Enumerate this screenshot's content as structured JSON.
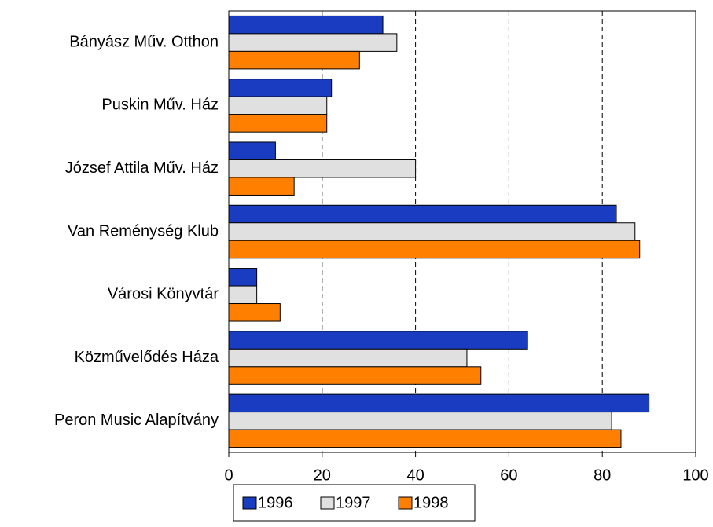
{
  "chart_data": {
    "type": "bar",
    "orientation": "horizontal",
    "categories": [
      "Bányász Műv. Otthon",
      "Puskin Műv. Ház",
      "József Attila Műv. Ház",
      "Van Reménység Klub",
      "Városi Könyvtár",
      "Közművelődés Háza",
      "Peron Music Alapítvány"
    ],
    "series": [
      {
        "name": "1996",
        "color": "#1a3cc0",
        "values": [
          33,
          22,
          10,
          83,
          6,
          64,
          90
        ]
      },
      {
        "name": "1997",
        "color": "#e0e0e0",
        "values": [
          36,
          21,
          40,
          87,
          6,
          51,
          82
        ]
      },
      {
        "name": "1998",
        "color": "#ff8000",
        "values": [
          28,
          21,
          14,
          88,
          11,
          54,
          84
        ]
      }
    ],
    "xlim": [
      0,
      100
    ],
    "xticks": [
      0,
      20,
      40,
      60,
      80,
      100
    ],
    "grid": true,
    "legend": "bottom"
  }
}
